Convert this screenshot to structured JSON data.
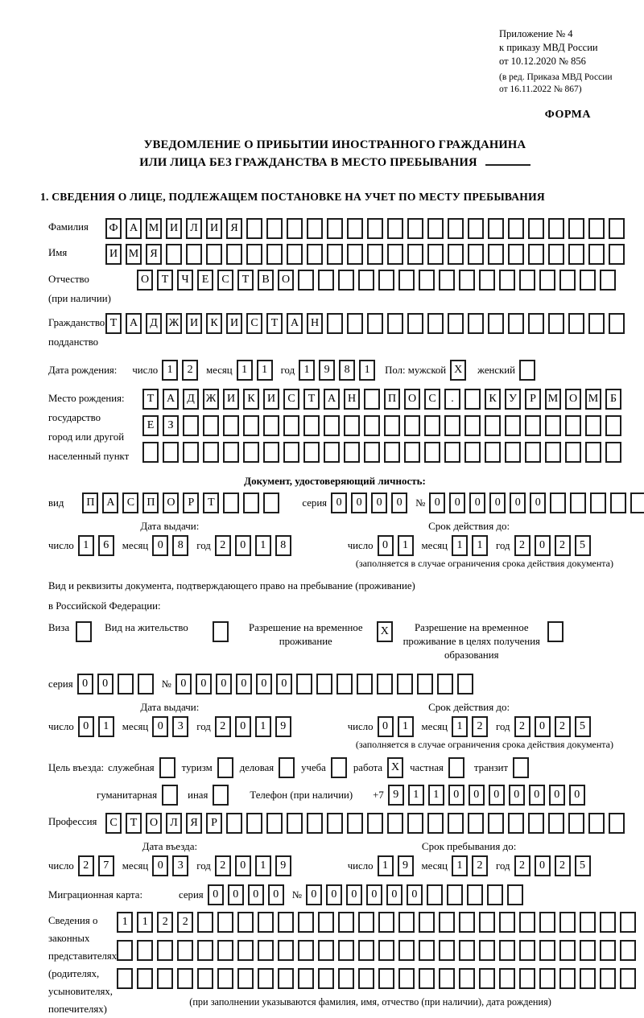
{
  "header": {
    "appendix_lines": [
      "Приложение № 4",
      "к приказу МВД России",
      "от 10.12.2020 № 856"
    ],
    "edition_lines": [
      "(в ред. Приказа МВД России",
      "от 16.11.2022 № 867)"
    ],
    "forma": "ФОРМА"
  },
  "title": {
    "line1": "УВЕДОМЛЕНИЕ О ПРИБЫТИИ ИНОСТРАННОГО ГРАЖДАНИНА",
    "line2": "ИЛИ ЛИЦА БЕЗ ГРАЖДАНСТВА В МЕСТО ПРЕБЫВАНИЯ"
  },
  "section1": {
    "title": "1. СВЕДЕНИЯ О ЛИЦЕ, ПОДЛЕЖАЩЕМ ПОСТАНОВКЕ НА УЧЕТ ПО МЕСТУ ПРЕБЫВАНИЯ"
  },
  "labels": {
    "chislo": "число",
    "mesyac": "месяц",
    "god": "год",
    "seriya": "серия",
    "num": "№"
  },
  "surname": {
    "label": "Фамилия",
    "row": {
      "len": 26,
      "value": "ФАМИЛИЯ"
    }
  },
  "name": {
    "label": "Имя",
    "row": {
      "len": 26,
      "value": "ИМЯ"
    }
  },
  "patronymic": {
    "label_lines": [
      "Отчество",
      "(при наличии)"
    ],
    "row": {
      "len": 24,
      "value": "ОТЧЕСТВО"
    }
  },
  "citizenship": {
    "label_lines": [
      "Гражданство,",
      "подданство"
    ],
    "row": {
      "len": 26,
      "value": "ТАДЖИКИСТАН"
    }
  },
  "birth_date": {
    "label": "Дата рождения:",
    "d": {
      "len": 2,
      "value": "12"
    },
    "m": {
      "len": 2,
      "value": "11"
    },
    "y": {
      "len": 4,
      "value": "1981"
    },
    "sex_label": "Пол: мужской",
    "male": {
      "len": 1,
      "value": "X"
    },
    "female_label": "женский",
    "female": {
      "len": 1,
      "value": ""
    }
  },
  "birth_place": {
    "label_lines": [
      "Место рождения:",
      "государство",
      "город или другой",
      "населенный пункт"
    ],
    "rows": [
      {
        "len": 24,
        "value": "ТАДЖИКИСТАН ПОС. КУРМОМБ"
      },
      {
        "len": 24,
        "value": "ЕЗ"
      },
      {
        "len": 24,
        "value": ""
      }
    ]
  },
  "identity_doc": {
    "header": "Документ, удостоверяющий личность:",
    "vid_label": "вид",
    "vid": {
      "len": 10,
      "value": "ПАСПОРТ"
    },
    "seriya": {
      "len": 4,
      "value": "0000"
    },
    "number": {
      "len": 11,
      "value": "000000"
    },
    "issue_header": "Дата выдачи:",
    "expiry_header": "Срок действия до:",
    "issue": {
      "d": {
        "len": 2,
        "value": "16"
      },
      "m": {
        "len": 2,
        "value": "08"
      },
      "y": {
        "len": 4,
        "value": "2018"
      }
    },
    "expiry": {
      "d": {
        "len": 2,
        "value": "01"
      },
      "m": {
        "len": 2,
        "value": "11"
      },
      "y": {
        "len": 4,
        "value": "2025"
      }
    },
    "note": "(заполняется в случае ограничения срока действия документа)"
  },
  "residence_doc": {
    "line1": "Вид и реквизиты документа, подтверждающего право на пребывание (проживание)",
    "line2": "в Российской Федерации:",
    "options": [
      {
        "label": "Виза",
        "box": {
          "len": 1,
          "value": ""
        }
      },
      {
        "label": "Вид на жительство",
        "box": {
          "len": 1,
          "value": ""
        }
      },
      {
        "label": "Разрешение на временное проживание",
        "box": {
          "len": 1,
          "value": "X"
        }
      },
      {
        "label": "Разрешение на временное проживание в целях получения образования",
        "box": {
          "len": 1,
          "value": ""
        }
      }
    ],
    "seriya": {
      "len": 4,
      "value": "00"
    },
    "number": {
      "len": 15,
      "value": "000000"
    },
    "issue_header": "Дата выдачи:",
    "expiry_header": "Срок действия до:",
    "issue": {
      "d": {
        "len": 2,
        "value": "01"
      },
      "m": {
        "len": 2,
        "value": "03"
      },
      "y": {
        "len": 4,
        "value": "2019"
      }
    },
    "expiry": {
      "d": {
        "len": 2,
        "value": "01"
      },
      "m": {
        "len": 2,
        "value": "12"
      },
      "y": {
        "len": 4,
        "value": "2025"
      }
    },
    "note": "(заполняется в случае ограничения срока действия документа)"
  },
  "purpose": {
    "label": "Цель въезда:",
    "options": [
      {
        "label": "служебная",
        "box": {
          "len": 1,
          "value": ""
        }
      },
      {
        "label": "туризм",
        "box": {
          "len": 1,
          "value": ""
        }
      },
      {
        "label": "деловая",
        "box": {
          "len": 1,
          "value": ""
        }
      },
      {
        "label": "учеба",
        "box": {
          "len": 1,
          "value": ""
        }
      },
      {
        "label": "работа",
        "box": {
          "len": 1,
          "value": "X"
        }
      },
      {
        "label": "частная",
        "box": {
          "len": 1,
          "value": ""
        }
      },
      {
        "label": "транзит",
        "box": {
          "len": 1,
          "value": ""
        }
      }
    ],
    "options2": [
      {
        "label": "гуманитарная",
        "box": {
          "len": 1,
          "value": ""
        }
      },
      {
        "label": "иная",
        "box": {
          "len": 1,
          "value": ""
        }
      }
    ],
    "phone_label": "Телефон (при наличии)",
    "phone_prefix": "+7",
    "phone": {
      "len": 10,
      "value": "9110000000"
    }
  },
  "profession": {
    "label": "Профессия",
    "row": {
      "len": 26,
      "value": "СТОЛЯР"
    }
  },
  "entry": {
    "issue_header": "Дата въезда:",
    "expiry_header": "Срок пребывания до:",
    "issue": {
      "d": {
        "len": 2,
        "value": "27"
      },
      "m": {
        "len": 2,
        "value": "03"
      },
      "y": {
        "len": 4,
        "value": "2019"
      }
    },
    "expiry": {
      "d": {
        "len": 2,
        "value": "19"
      },
      "m": {
        "len": 2,
        "value": "12"
      },
      "y": {
        "len": 4,
        "value": "2025"
      }
    }
  },
  "migration_card": {
    "label": "Миграционная карта:",
    "seriya": {
      "len": 4,
      "value": "0000"
    },
    "number": {
      "len": 11,
      "value": "000000"
    }
  },
  "representatives": {
    "label_lines": [
      "Сведения о",
      "законных",
      "представителях",
      "(родителях,",
      "усыновителях,",
      "попечителях)"
    ],
    "rows": [
      {
        "len": 26,
        "value": "1122"
      },
      {
        "len": 26,
        "value": ""
      },
      {
        "len": 26,
        "value": ""
      }
    ],
    "note": "(при заполнении указываются фамилия, имя, отчество (при наличии), дата рождения)"
  }
}
